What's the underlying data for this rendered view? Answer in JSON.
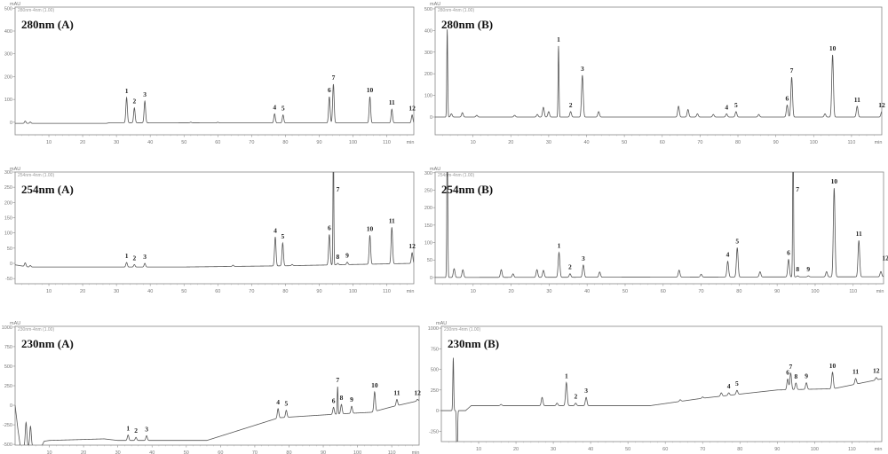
{
  "chart_data": [
    {
      "type": "line",
      "title": "280nm (A)",
      "header": "280nm-4nm (1.00)",
      "ylabel": "mAU",
      "xlabel": "min",
      "xlim": [
        0,
        118
      ],
      "ylim": [
        -55,
        505
      ],
      "xticks": [
        10,
        20,
        30,
        40,
        50,
        60,
        70,
        80,
        90,
        100,
        110
      ],
      "yticks": [
        0,
        100,
        200,
        300,
        400,
        500
      ],
      "baseline": [
        [
          0,
          -5
        ],
        [
          27,
          -5
        ],
        [
          28,
          -2
        ],
        [
          60,
          -3
        ],
        [
          118,
          -3
        ]
      ],
      "peaks": [
        {
          "label": "1",
          "t": 33.0,
          "h": 110
        },
        {
          "label": "2",
          "t": 35.3,
          "h": 65
        },
        {
          "label": "3",
          "t": 38.4,
          "h": 95
        },
        {
          "label": "4",
          "t": 76.8,
          "h": 40
        },
        {
          "label": "5",
          "t": 79.3,
          "h": 35
        },
        {
          "label": "6",
          "t": 93.0,
          "h": 115
        },
        {
          "label": "7",
          "t": 94.2,
          "h": 170
        },
        {
          "label": "10",
          "t": 105.0,
          "h": 115
        },
        {
          "label": "11",
          "t": 111.5,
          "h": 60
        },
        {
          "label": "12",
          "t": 117.5,
          "h": 35
        }
      ],
      "minor_peaks": [
        [
          3.0,
          10
        ],
        [
          4.5,
          6
        ],
        [
          52,
          3
        ],
        [
          60,
          3
        ]
      ]
    },
    {
      "type": "line",
      "title": "280nm (B)",
      "header": "280nm-4nm (1.00)",
      "ylabel": "mAU",
      "xlabel": "min",
      "xlim": [
        0,
        118
      ],
      "ylim": [
        -82,
        508
      ],
      "xticks": [
        10,
        20,
        30,
        40,
        50,
        60,
        70,
        80,
        90,
        100,
        110
      ],
      "yticks": [
        0,
        100,
        200,
        300,
        400,
        500
      ],
      "baseline": [
        [
          0,
          0
        ],
        [
          118,
          0
        ]
      ],
      "peaks": [
        {
          "label": "1",
          "t": 32.6,
          "h": 328
        },
        {
          "label": "2",
          "t": 35.8,
          "h": 25
        },
        {
          "label": "3",
          "t": 38.9,
          "h": 193
        },
        {
          "label": "4",
          "t": 77.0,
          "h": 15
        },
        {
          "label": "5",
          "t": 79.5,
          "h": 25
        },
        {
          "label": "6",
          "t": 93.0,
          "h": 55
        },
        {
          "label": "7",
          "t": 94.2,
          "h": 184
        },
        {
          "label": "10",
          "t": 105.0,
          "h": 287
        },
        {
          "label": "11",
          "t": 111.5,
          "h": 50
        },
        {
          "label": "12",
          "t": 118.0,
          "h": 25
        }
      ],
      "minor_peaks": [
        [
          3.2,
          405
        ],
        [
          4.3,
          15
        ],
        [
          7.2,
          20
        ],
        [
          11,
          8
        ],
        [
          21,
          8
        ],
        [
          27,
          12
        ],
        [
          28.6,
          45
        ],
        [
          30,
          25
        ],
        [
          43.2,
          25
        ],
        [
          64.3,
          50
        ],
        [
          66.8,
          35
        ],
        [
          69.3,
          15
        ],
        [
          73.5,
          12
        ],
        [
          85.5,
          12
        ],
        [
          103,
          15
        ]
      ]
    },
    {
      "type": "line",
      "title": "254nm (A)",
      "header": "254nm-4nm (1.00)",
      "ylabel": "mAU",
      "xlabel": "min",
      "xlim": [
        0,
        118
      ],
      "ylim": [
        -67,
        300
      ],
      "xticks": [
        10,
        20,
        30,
        40,
        50,
        60,
        70,
        80,
        90,
        100,
        110
      ],
      "yticks": [
        -50,
        0,
        50,
        100,
        150,
        200,
        250,
        300
      ],
      "baseline": [
        [
          0,
          -5
        ],
        [
          4,
          -12
        ],
        [
          8,
          -12
        ],
        [
          50,
          -12
        ],
        [
          80,
          -8
        ],
        [
          118,
          0
        ]
      ],
      "peaks": [
        {
          "label": "1",
          "t": 33.0,
          "h": 15
        },
        {
          "label": "2",
          "t": 35.3,
          "h": 8
        },
        {
          "label": "3",
          "t": 38.4,
          "h": 12
        },
        {
          "label": "4",
          "t": 77.0,
          "h": 95
        },
        {
          "label": "5",
          "t": 79.2,
          "h": 75
        },
        {
          "label": "6",
          "t": 93.0,
          "h": 100
        },
        {
          "label": "7",
          "t": 94.2,
          "h": 420
        },
        {
          "label": "8",
          "t": 95.5,
          "h": 5
        },
        {
          "label": "9",
          "t": 98.3,
          "h": 8
        },
        {
          "label": "10",
          "t": 105.0,
          "h": 95
        },
        {
          "label": "11",
          "t": 111.5,
          "h": 120
        },
        {
          "label": "12",
          "t": 117.5,
          "h": 35
        }
      ],
      "minor_peaks": [
        [
          3.0,
          12
        ],
        [
          4.5,
          5
        ],
        [
          64.5,
          4
        ],
        [
          82,
          4
        ]
      ]
    },
    {
      "type": "line",
      "title": "254nm (B)",
      "header": "254nm-4nm (1.00)",
      "ylabel": "mAU",
      "xlabel": "min",
      "xlim": [
        0,
        118
      ],
      "ylim": [
        -18,
        302
      ],
      "xticks": [
        10,
        20,
        30,
        40,
        50,
        60,
        70,
        80,
        90,
        100,
        110
      ],
      "yticks": [
        0,
        50,
        100,
        150,
        200,
        250,
        300
      ],
      "baseline": [
        [
          0,
          0
        ],
        [
          118,
          2
        ]
      ],
      "peaks": [
        {
          "label": "1",
          "t": 32.6,
          "h": 71
        },
        {
          "label": "2",
          "t": 35.5,
          "h": 10
        },
        {
          "label": "3",
          "t": 39.0,
          "h": 35
        },
        {
          "label": "4",
          "t": 77.0,
          "h": 45
        },
        {
          "label": "5",
          "t": 79.5,
          "h": 84
        },
        {
          "label": "6",
          "t": 93.0,
          "h": 50
        },
        {
          "label": "7",
          "t": 94.2,
          "h": 400
        },
        {
          "label": "8",
          "t": 95.4,
          "h": 3
        },
        {
          "label": "9",
          "t": 98.2,
          "h": 3
        },
        {
          "label": "10",
          "t": 105.0,
          "h": 254
        },
        {
          "label": "11",
          "t": 111.5,
          "h": 104
        },
        {
          "label": "12",
          "t": 118.5,
          "h": 35
        }
      ],
      "minor_peaks": [
        [
          3.2,
          420
        ],
        [
          5.0,
          25
        ],
        [
          7.3,
          22
        ],
        [
          17.4,
          22
        ],
        [
          20.5,
          10
        ],
        [
          26.8,
          22
        ],
        [
          28.5,
          20
        ],
        [
          43.3,
          15
        ],
        [
          64.2,
          20
        ],
        [
          70,
          8
        ],
        [
          85.5,
          15
        ],
        [
          103,
          15
        ],
        [
          117.3,
          15
        ]
      ]
    },
    {
      "type": "line",
      "title": "230nm (A)",
      "header": "230nm-4nm (1.00)",
      "ylabel": "mAU",
      "xlabel": "min",
      "xlim": [
        0,
        118
      ],
      "ylim": [
        -510,
        1010
      ],
      "xticks": [
        10,
        20,
        30,
        40,
        50,
        60,
        70,
        80,
        90,
        100,
        110
      ],
      "yticks": [
        -500,
        -250,
        0,
        250,
        500,
        750,
        1000
      ],
      "baseline": [
        [
          0,
          0
        ],
        [
          0.8,
          -300
        ],
        [
          1.5,
          -520
        ],
        [
          7.8,
          -520
        ],
        [
          8.5,
          -460
        ],
        [
          10,
          -450
        ],
        [
          26,
          -430
        ],
        [
          30,
          -450
        ],
        [
          56,
          -450
        ],
        [
          77,
          -160
        ],
        [
          95,
          -110
        ],
        [
          104,
          -90
        ],
        [
          110,
          -20
        ],
        [
          118,
          60
        ]
      ],
      "peaks": [
        {
          "label": "1",
          "t": 33.0,
          "h": 70
        },
        {
          "label": "2",
          "t": 35.3,
          "h": 40
        },
        {
          "label": "3",
          "t": 38.4,
          "h": 60
        },
        {
          "label": "4",
          "t": 76.8,
          "h": 120
        },
        {
          "label": "5",
          "t": 79.2,
          "h": 90
        },
        {
          "label": "6",
          "t": 93.0,
          "h": 90
        },
        {
          "label": "7",
          "t": 94.2,
          "h": 350
        },
        {
          "label": "8",
          "t": 95.3,
          "h": 120
        },
        {
          "label": "9",
          "t": 98.3,
          "h": 90
        },
        {
          "label": "10",
          "t": 105.0,
          "h": 250
        },
        {
          "label": "11",
          "t": 111.5,
          "h": 80
        },
        {
          "label": "12",
          "t": 117.5,
          "h": 20
        }
      ],
      "minor_peaks": [
        [
          3.2,
          300
        ],
        [
          4.5,
          250
        ]
      ]
    },
    {
      "type": "line",
      "title": "230nm (B)",
      "header": "230nm-4nm (1.00)",
      "ylabel": "mAU",
      "xlabel": "min",
      "xlim": [
        0,
        118
      ],
      "ylim": [
        -376,
        1022
      ],
      "xticks": [
        10,
        20,
        30,
        40,
        50,
        60,
        70,
        80,
        90,
        100,
        110
      ],
      "yticks": [
        -250,
        0,
        250,
        500,
        750,
        1000
      ],
      "baseline": [
        [
          0,
          0
        ],
        [
          5,
          0
        ],
        [
          6.5,
          0
        ],
        [
          8,
          60
        ],
        [
          56,
          60
        ],
        [
          70,
          150
        ],
        [
          90,
          250
        ],
        [
          105,
          265
        ],
        [
          118,
          385
        ]
      ],
      "peaks": [
        {
          "label": "1",
          "t": 33.5,
          "h": 280
        },
        {
          "label": "2",
          "t": 36.0,
          "h": 30
        },
        {
          "label": "3",
          "t": 38.8,
          "h": 100
        },
        {
          "label": "4",
          "t": 77.0,
          "h": 30
        },
        {
          "label": "5",
          "t": 79.2,
          "h": 50
        },
        {
          "label": "6",
          "t": 92.8,
          "h": 130
        },
        {
          "label": "7",
          "t": 93.6,
          "h": 200
        },
        {
          "label": "8",
          "t": 95.0,
          "h": 80
        },
        {
          "label": "9",
          "t": 97.8,
          "h": 80
        },
        {
          "label": "10",
          "t": 104.8,
          "h": 200
        },
        {
          "label": "11",
          "t": 111.0,
          "h": 70
        },
        {
          "label": "12",
          "t": 116.5,
          "h": 30
        }
      ],
      "minor_peaks": [
        [
          3.2,
          640
        ],
        [
          4.2,
          -800
        ],
        [
          16,
          15
        ],
        [
          27,
          100
        ],
        [
          31,
          30
        ],
        [
          75,
          40
        ],
        [
          70,
          15
        ],
        [
          64,
          20
        ]
      ]
    }
  ]
}
